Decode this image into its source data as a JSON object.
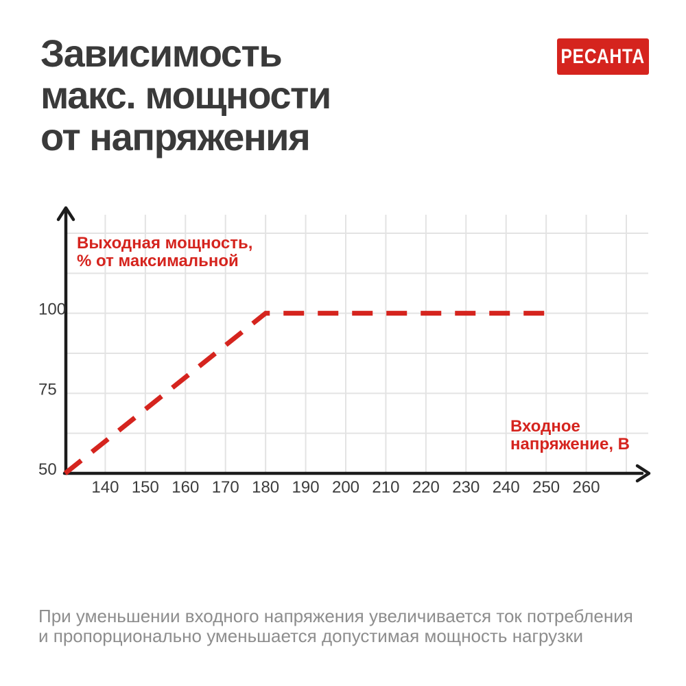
{
  "header": {
    "title_display": "Зависимость\nмакс. мощности\nот напряжения",
    "brand": "РЕСАНТА"
  },
  "labels": {
    "y_axis_title": "Выходная мощность,\n% от максимальной",
    "x_axis_title": "Входное\nнапряжение, В"
  },
  "footer": {
    "note": "При уменьшении входного напряжения увеличивается ток потребления\nи пропорционально уменьшается допустимая мощность нагрузки"
  },
  "colors": {
    "accent_red": "#D5241E",
    "title_text": "#3A3A3A",
    "tick_text": "#3C3C3C",
    "grid": "#E3E3E3",
    "axis": "#1C1C1C",
    "caption_text": "#8D8D8D",
    "background": "#FFFFFF",
    "logo_text": "#FFFFFF"
  },
  "chart_data": {
    "type": "line",
    "title": "Зависимость макс. мощности от напряжения",
    "xlabel": "Входное напряжение, В",
    "ylabel": "Выходная мощность, % от максимальной",
    "xlim": [
      130,
      270
    ],
    "ylim": [
      50,
      125
    ],
    "x_ticks": [
      140,
      150,
      160,
      170,
      180,
      190,
      200,
      210,
      220,
      230,
      240,
      250,
      260
    ],
    "y_ticks": [
      50,
      75,
      100
    ],
    "x_grid_step": 10,
    "y_grid_step": 12.5,
    "grid": true,
    "legend": false,
    "series": [
      {
        "name": "Выходная мощность, % от максимальной",
        "style": "dashed",
        "color": "#D5241E",
        "points": [
          [
            130,
            50
          ],
          [
            180,
            100
          ],
          [
            250,
            100
          ]
        ]
      }
    ]
  }
}
